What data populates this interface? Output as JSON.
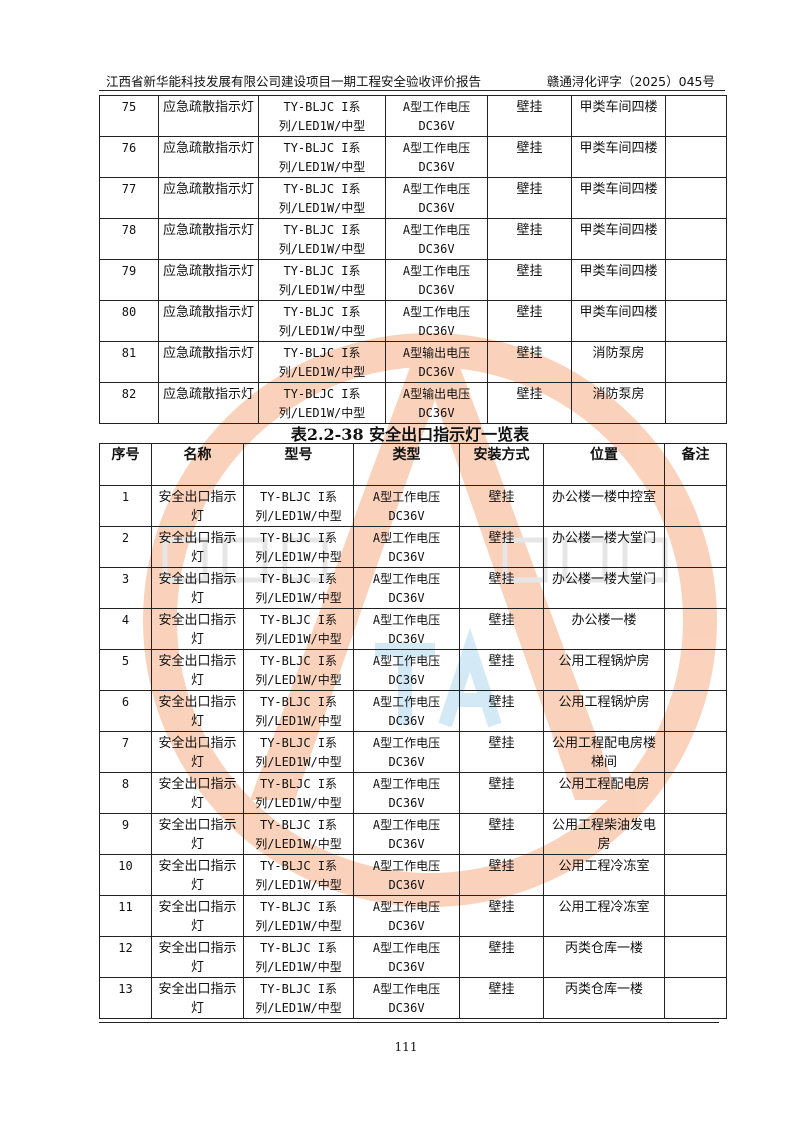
{
  "header": {
    "left": "江西省新华能科技发展有限公司建设项目一期工程安全验收评价报告",
    "right": "赣通浔化评字（2025）045号"
  },
  "table1": {
    "rows": [
      [
        "75",
        "应急疏散指示灯",
        "TY-BLJC I系列/LED1W/中型",
        "A型工作电压DC36V",
        "壁挂",
        "甲类车间四楼",
        ""
      ],
      [
        "76",
        "应急疏散指示灯",
        "TY-BLJC I系列/LED1W/中型",
        "A型工作电压DC36V",
        "壁挂",
        "甲类车间四楼",
        ""
      ],
      [
        "77",
        "应急疏散指示灯",
        "TY-BLJC I系列/LED1W/中型",
        "A型工作电压DC36V",
        "壁挂",
        "甲类车间四楼",
        ""
      ],
      [
        "78",
        "应急疏散指示灯",
        "TY-BLJC I系列/LED1W/中型",
        "A型工作电压DC36V",
        "壁挂",
        "甲类车间四楼",
        ""
      ],
      [
        "79",
        "应急疏散指示灯",
        "TY-BLJC I系列/LED1W/中型",
        "A型工作电压DC36V",
        "壁挂",
        "甲类车间四楼",
        ""
      ],
      [
        "80",
        "应急疏散指示灯",
        "TY-BLJC I系列/LED1W/中型",
        "A型工作电压DC36V",
        "壁挂",
        "甲类车间四楼",
        ""
      ],
      [
        "81",
        "应急疏散指示灯",
        "TY-BLJC I系列/LED1W/中型",
        "A型输出电压DC36V",
        "壁挂",
        "消防泵房",
        ""
      ],
      [
        "82",
        "应急疏散指示灯",
        "TY-BLJC I系列/LED1W/中型",
        "A型输出电压DC36V",
        "壁挂",
        "消防泵房",
        ""
      ]
    ]
  },
  "table2": {
    "caption": "表2.2-38  安全出口指示灯一览表",
    "headers": [
      "序号",
      "名称",
      "型号",
      "类型",
      "安装方式",
      "位置",
      "备注"
    ],
    "rows": [
      [
        "1",
        "安全出口指示灯",
        "TY-BLJC I系列/LED1W/中型",
        "A型工作电压DC36V",
        "壁挂",
        "办公楼一楼中控室",
        ""
      ],
      [
        "2",
        "安全出口指示灯",
        "TY-BLJC I系列/LED1W/中型",
        "A型工作电压DC36V",
        "壁挂",
        "办公楼一楼大堂门",
        ""
      ],
      [
        "3",
        "安全出口指示灯",
        "TY-BLJC I系列/LED1W/中型",
        "A型工作电压DC36V",
        "壁挂",
        "办公楼一楼大堂门",
        ""
      ],
      [
        "4",
        "安全出口指示灯",
        "TY-BLJC I系列/LED1W/中型",
        "A型工作电压DC36V",
        "壁挂",
        "办公楼一楼",
        ""
      ],
      [
        "5",
        "安全出口指示灯",
        "TY-BLJC I系列/LED1W/中型",
        "A型工作电压DC36V",
        "壁挂",
        "公用工程锅炉房",
        ""
      ],
      [
        "6",
        "安全出口指示灯",
        "TY-BLJC I系列/LED1W/中型",
        "A型工作电压DC36V",
        "壁挂",
        "公用工程锅炉房",
        ""
      ],
      [
        "7",
        "安全出口指示灯",
        "TY-BLJC I系列/LED1W/中型",
        "A型工作电压DC36V",
        "壁挂",
        "公用工程配电房楼梯间",
        ""
      ],
      [
        "8",
        "安全出口指示灯",
        "TY-BLJC I系列/LED1W/中型",
        "A型工作电压DC36V",
        "壁挂",
        "公用工程配电房",
        ""
      ],
      [
        "9",
        "安全出口指示灯",
        "TY-BLJC I系列/LED1W/中型",
        "A型工作电压DC36V",
        "壁挂",
        "公用工程柴油发电房",
        ""
      ],
      [
        "10",
        "安全出口指示灯",
        "TY-BLJC I系列/LED1W/中型",
        "A型工作电压DC36V",
        "壁挂",
        "公用工程冷冻室",
        ""
      ],
      [
        "11",
        "安全出口指示灯",
        "TY-BLJC I系列/LED1W/中型",
        "A型工作电压DC36V",
        "壁挂",
        "公用工程冷冻室",
        ""
      ],
      [
        "12",
        "安全出口指示灯",
        "TY-BLJC I系列/LED1W/中型",
        "A型工作电压DC36V",
        "壁挂",
        "丙类仓库一楼",
        ""
      ],
      [
        "13",
        "安全出口指示灯",
        "TY-BLJC I系列/LED1W/中型",
        "A型工作电压DC36V",
        "壁挂",
        "丙类仓库一楼",
        ""
      ]
    ]
  },
  "footer": {
    "page_number": "111"
  },
  "watermark": {
    "colors": {
      "orange": "#f7a77a",
      "gray": "#cfcfcf",
      "blue": "#a9d4ee"
    }
  }
}
